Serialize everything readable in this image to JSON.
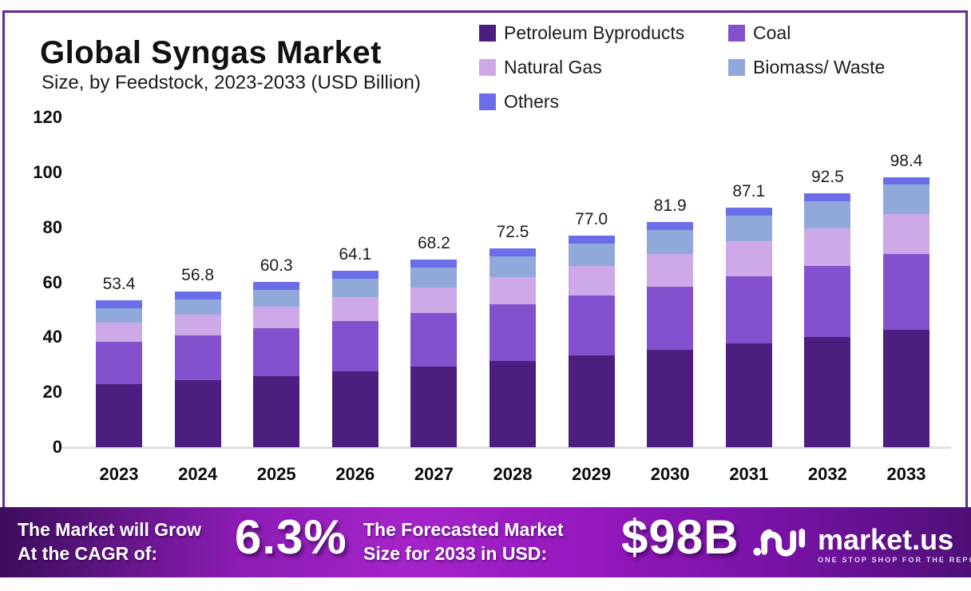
{
  "header": {
    "title": "Global Syngas Market",
    "subtitle": "Size, by Feedstock, 2023-2033 (USD Billion)"
  },
  "chart_data": {
    "type": "bar",
    "stacked": true,
    "title": "Global Syngas Market Size, by Feedstock, 2023-2033 (USD Billion)",
    "categories": [
      "2023",
      "2024",
      "2025",
      "2026",
      "2027",
      "2028",
      "2029",
      "2030",
      "2031",
      "2032",
      "2033"
    ],
    "totals": [
      53.4,
      56.8,
      60.3,
      64.1,
      68.2,
      72.5,
      77.0,
      81.9,
      87.1,
      92.5,
      98.4
    ],
    "series": [
      {
        "name": "Petroleum Byproducts",
        "color": "#4b1e80",
        "values": [
          22.9,
          24.4,
          25.95,
          27.63,
          29.44,
          31.35,
          33.33,
          35.5,
          37.8,
          40.19,
          42.8
        ]
      },
      {
        "name": "Coal",
        "color": "#8451ce",
        "values": [
          15.5,
          16.4,
          17.32,
          18.33,
          19.41,
          20.55,
          21.74,
          23.04,
          24.41,
          25.84,
          27.4
        ]
      },
      {
        "name": "Natural Gas",
        "color": "#cda9e8",
        "values": [
          6.8,
          7.4,
          8.01,
          8.68,
          9.4,
          10.15,
          10.94,
          11.8,
          12.72,
          13.66,
          14.7
        ]
      },
      {
        "name": "Biomass/ Waste",
        "color": "#90a9da",
        "values": [
          5.3,
          5.7,
          6.11,
          6.56,
          7.04,
          7.55,
          8.08,
          8.66,
          9.27,
          9.91,
          10.6
        ]
      },
      {
        "name": "Others",
        "color": "#6c6ee9",
        "values": [
          2.9,
          2.9,
          2.9,
          2.9,
          2.9,
          2.9,
          2.9,
          2.9,
          2.9,
          2.9,
          2.9
        ]
      }
    ],
    "xlabel": "",
    "ylabel": "",
    "ylim": [
      0,
      120
    ],
    "yticks": [
      0,
      20,
      40,
      60,
      80,
      100,
      120
    ],
    "grid": false,
    "legend_position": "top-right",
    "value_label_decimals": 1
  },
  "banner": {
    "growth_label_line1": "The Market will Grow",
    "growth_label_line2": "At the CAGR of:",
    "cagr_value": "6.3%",
    "forecast_label_line1": "The Forecasted Market",
    "forecast_label_line2": "Size for 2033 in USD:",
    "forecast_value": "$98B",
    "logo_name": "market.us",
    "logo_tagline": "ONE STOP SHOP FOR THE REPORTS"
  },
  "colors": {
    "frame_border": "#66299a",
    "banner_gradient_left": "#3c0e5c",
    "banner_gradient_mid": "#a524c9",
    "banner_gradient_right": "#4e0f77",
    "baseline": "#e1dfe5",
    "text": "#141414"
  }
}
